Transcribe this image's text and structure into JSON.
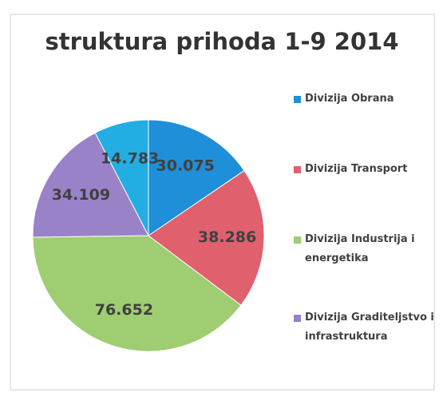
{
  "chart_data": {
    "type": "pie",
    "title": "struktura prihoda 1-9 2014",
    "categories": [
      "Divizija Obrana",
      "Divizija Transport",
      "Divizija Industrija i energetika",
      "Divizija Graditeljstvo i infrastruktura",
      null
    ],
    "values": [
      30.075,
      38.286,
      76.652,
      34.109,
      14.783
    ],
    "colors": [
      "#1e8fd8",
      "#e0606e",
      "#9fcd72",
      "#9a82c9",
      "#22aee2"
    ],
    "legend": "right"
  }
}
